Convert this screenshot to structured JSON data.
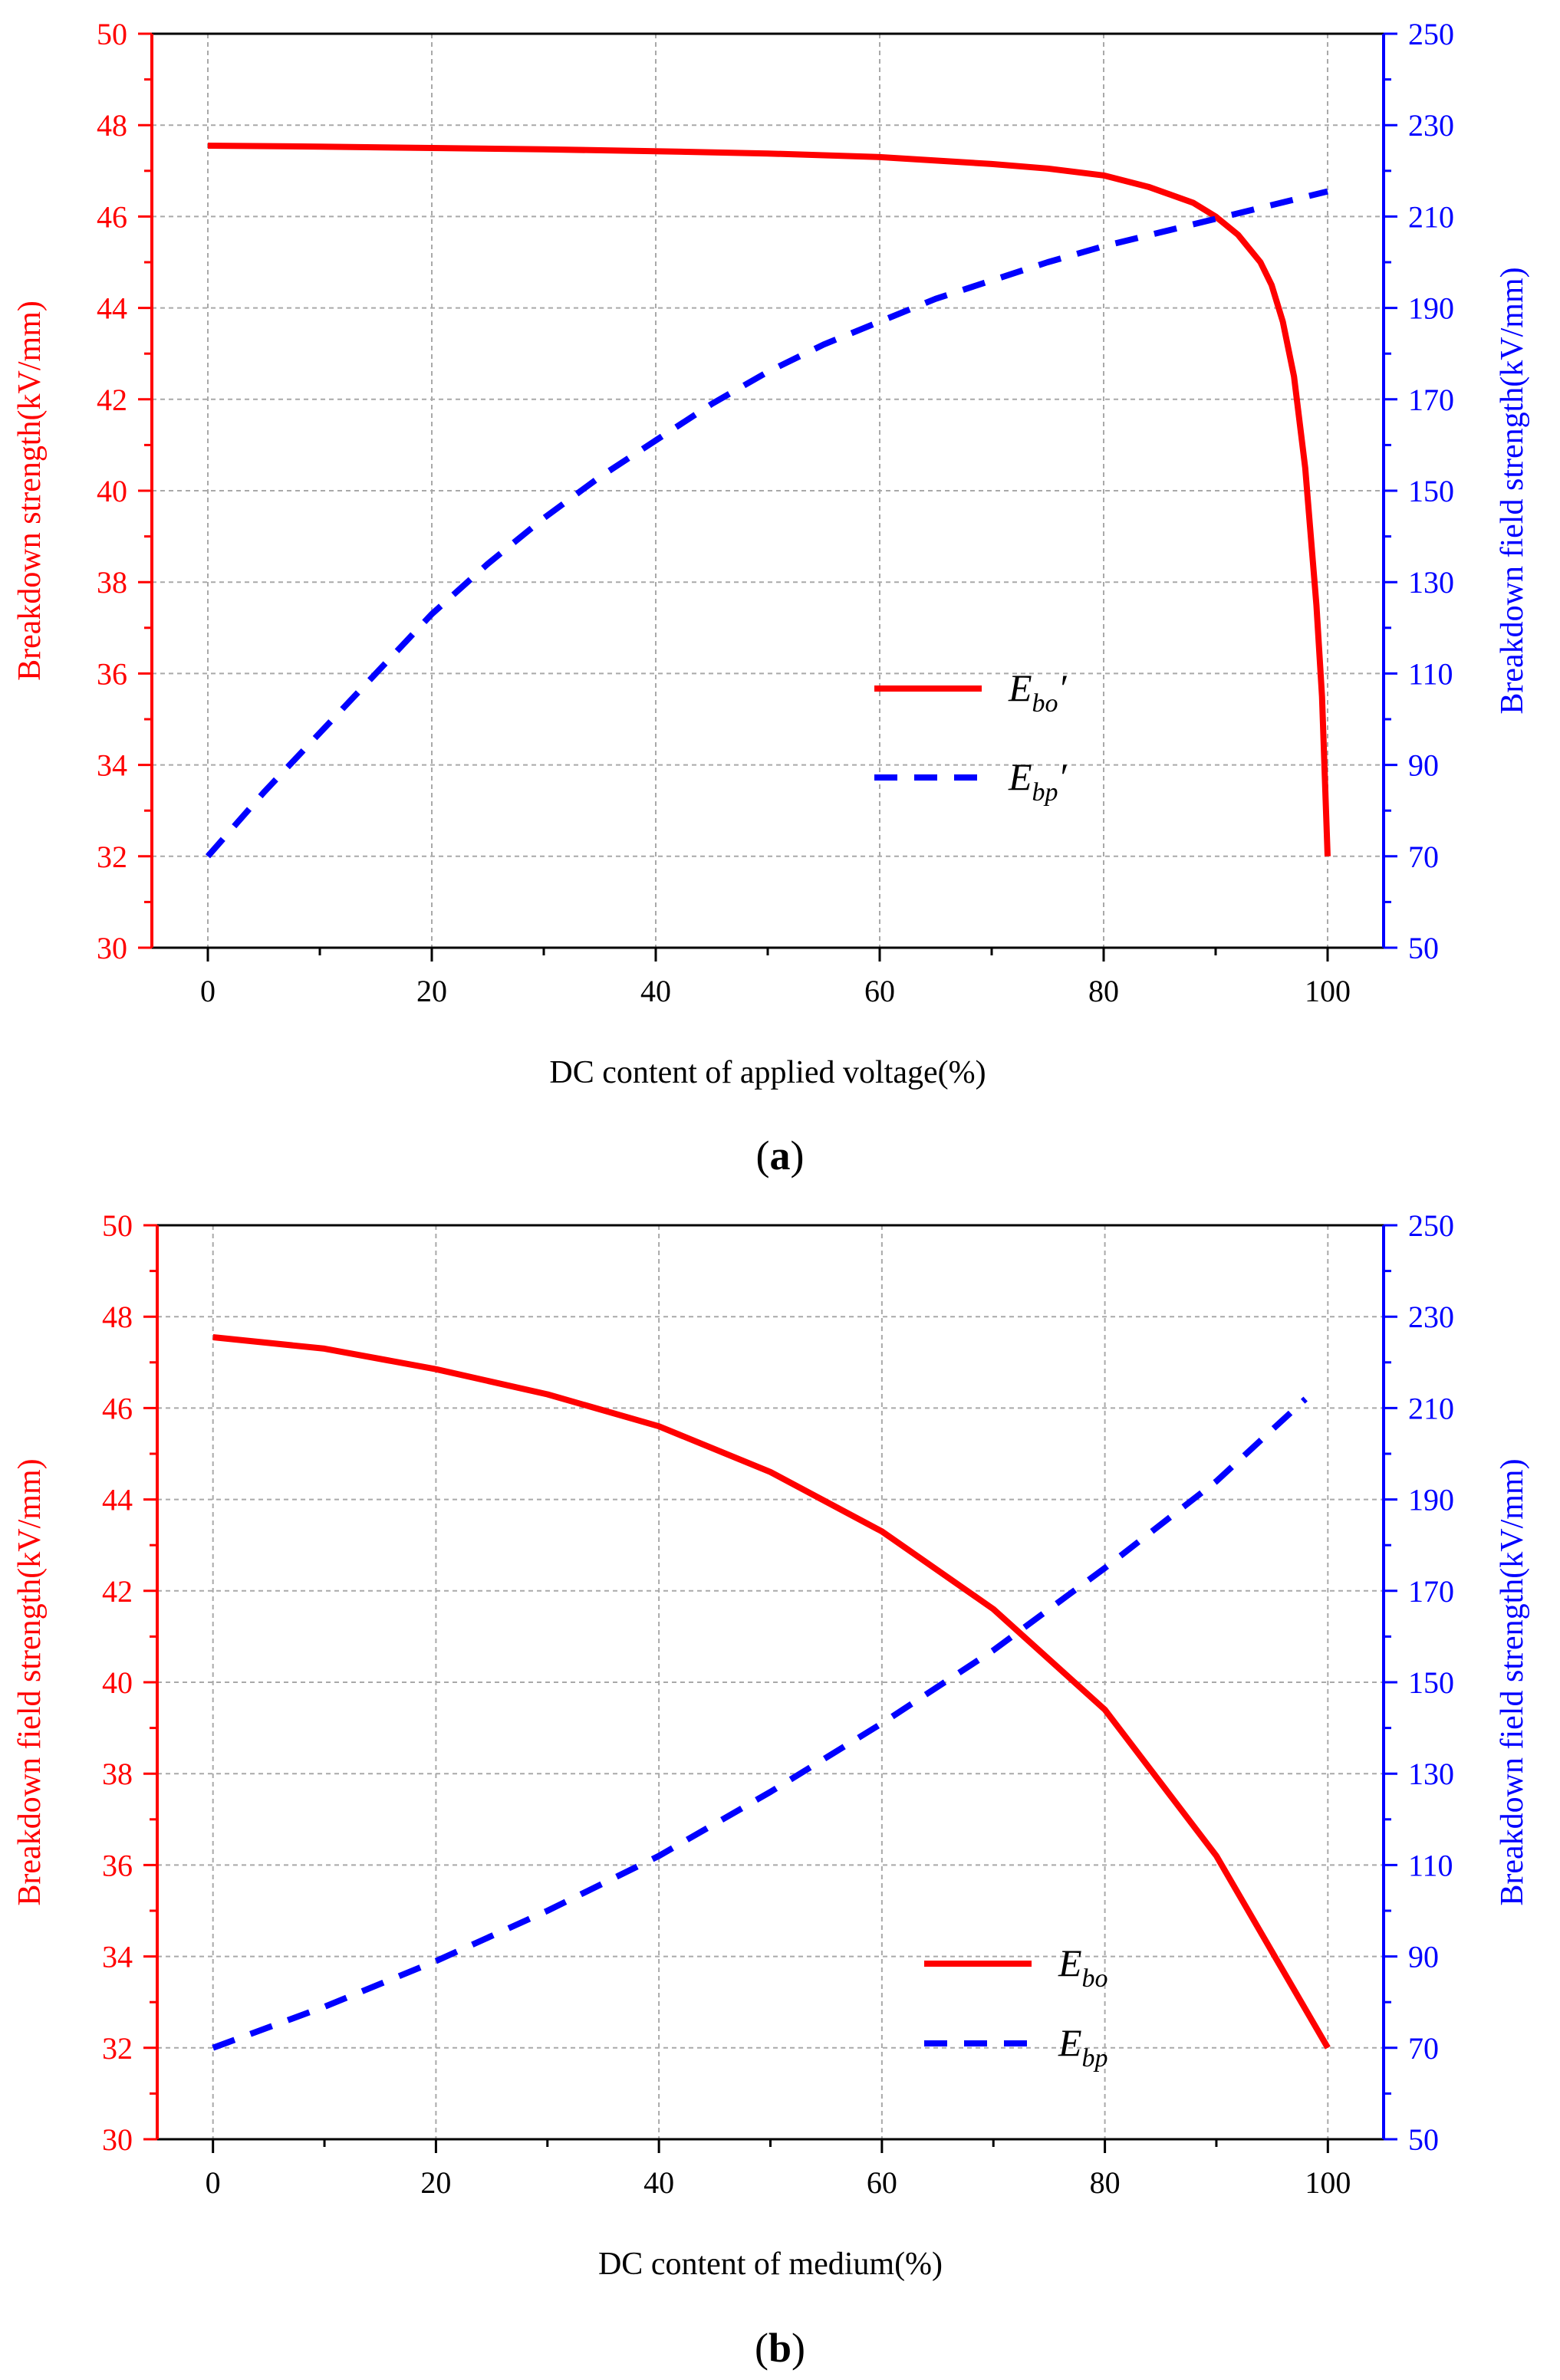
{
  "chart_data": [
    {
      "type": "line",
      "panel_label": "a",
      "xlabel": "DC content of applied voltage(%)",
      "ylabel_left": "Breakdown strength(kV/mm)",
      "ylabel_right": "Breakdown field strength(kV/mm)",
      "xlim": [
        -5,
        105
      ],
      "xticks": [
        0,
        20,
        40,
        60,
        80,
        100
      ],
      "ylim_left": [
        30,
        50
      ],
      "yticks_left": [
        30,
        32,
        34,
        36,
        38,
        40,
        42,
        44,
        46,
        48,
        50
      ],
      "ylim_right": [
        50,
        250
      ],
      "yticks_right": [
        50,
        70,
        90,
        110,
        130,
        150,
        170,
        190,
        210,
        230,
        250
      ],
      "grid": true,
      "legend_position": "lower-right",
      "series": [
        {
          "name": "Ebo'",
          "legend_main": "E",
          "legend_sub": "bo",
          "legend_prime": "′",
          "axis": "left",
          "color": "#ff0000",
          "style": "solid",
          "x": [
            0,
            10,
            20,
            30,
            40,
            50,
            60,
            70,
            75,
            80,
            84,
            88,
            90,
            92,
            94,
            95,
            96,
            97,
            98,
            99,
            99.5,
            100
          ],
          "y": [
            47.55,
            47.53,
            47.5,
            47.47,
            47.43,
            47.38,
            47.3,
            47.15,
            47.05,
            46.9,
            46.65,
            46.3,
            46.0,
            45.6,
            45.0,
            44.5,
            43.7,
            42.5,
            40.5,
            37.5,
            35.5,
            32.0
          ]
        },
        {
          "name": "Ebp'",
          "legend_main": "E",
          "legend_sub": "bp",
          "legend_prime": "′",
          "axis": "right",
          "color": "#0000ff",
          "style": "dashed",
          "x": [
            0,
            5,
            10,
            15,
            20,
            25,
            30,
            35,
            40,
            45,
            50,
            55,
            60,
            65,
            70,
            75,
            80,
            85,
            90,
            95,
            100
          ],
          "y": [
            70,
            84,
            97,
            110,
            123,
            134,
            144,
            153,
            161,
            169,
            176,
            182,
            187,
            192,
            196,
            200,
            203.5,
            206.5,
            209.5,
            212.5,
            215.5
          ]
        }
      ]
    },
    {
      "type": "line",
      "panel_label": "b",
      "xlabel": "DC content of medium(%)",
      "ylabel_left": "Breakdown field strength(kV/mm)",
      "ylabel_right": "Breakdown field strength(kV/mm)",
      "xlim": [
        -5,
        105
      ],
      "xticks": [
        0,
        20,
        40,
        60,
        80,
        100
      ],
      "ylim_left": [
        30,
        50
      ],
      "yticks_left": [
        30,
        32,
        34,
        36,
        38,
        40,
        42,
        44,
        46,
        48,
        50
      ],
      "ylim_right": [
        50,
        250
      ],
      "yticks_right": [
        50,
        70,
        90,
        110,
        130,
        150,
        170,
        190,
        210,
        230,
        250
      ],
      "grid": true,
      "legend_position": "lower-right",
      "series": [
        {
          "name": "Ebo",
          "legend_main": "E",
          "legend_sub": "bo",
          "legend_prime": "",
          "axis": "left",
          "color": "#ff0000",
          "style": "solid",
          "x": [
            0,
            10,
            20,
            30,
            40,
            50,
            60,
            70,
            80,
            90,
            100
          ],
          "y": [
            47.55,
            47.3,
            46.85,
            46.3,
            45.6,
            44.6,
            43.3,
            41.6,
            39.4,
            36.2,
            32.0
          ]
        },
        {
          "name": "Ebp",
          "legend_main": "E",
          "legend_sub": "bp",
          "legend_prime": "",
          "axis": "right",
          "color": "#0000ff",
          "style": "dashed",
          "x": [
            0,
            10,
            20,
            30,
            40,
            50,
            60,
            70,
            80,
            90,
            98
          ],
          "y": [
            70,
            79,
            89,
            100,
            112,
            126,
            141,
            157,
            175,
            194,
            212
          ]
        }
      ]
    }
  ]
}
